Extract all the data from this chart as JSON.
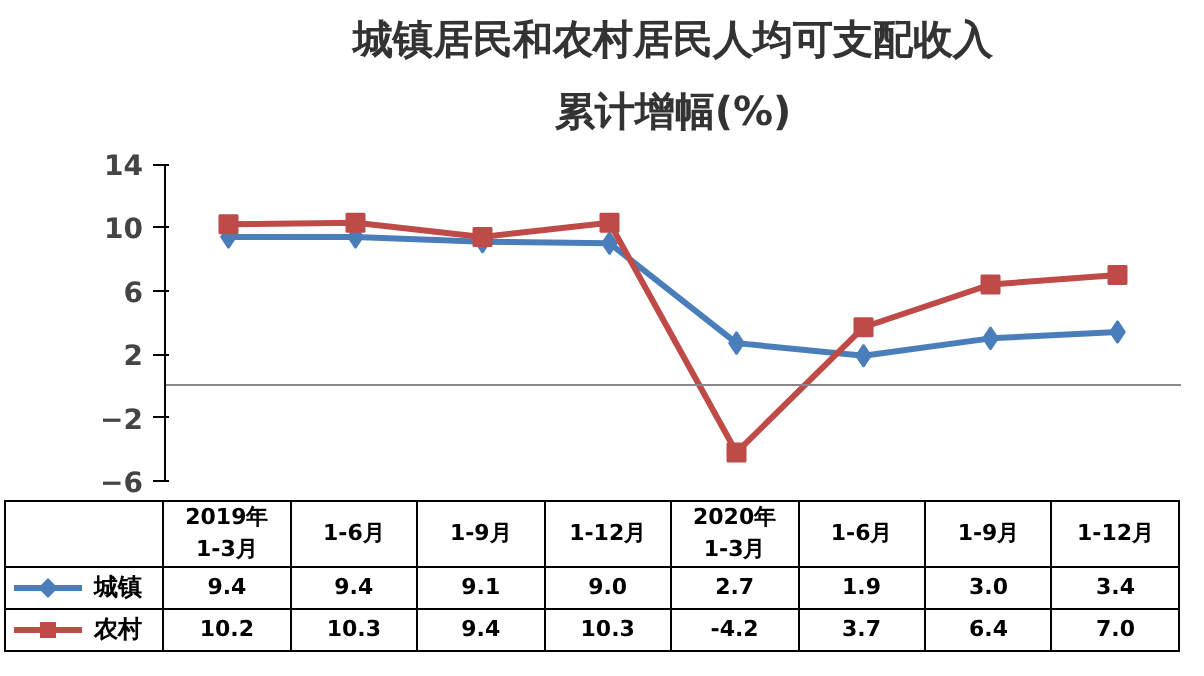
{
  "chart_data": {
    "type": "line",
    "title": "城镇居民和农村居民人均可支配收入",
    "subtitle": "累计增幅(%)",
    "categories": [
      "2019年\n1-3月",
      "1-6月",
      "1-9月",
      "1-12月",
      "2020年\n1-3月",
      "1-6月",
      "1-9月",
      "1-12月"
    ],
    "series": [
      {
        "name": "城镇",
        "color": "#4a7ebb",
        "marker": "diamond",
        "values": [
          9.4,
          9.4,
          9.1,
          9.0,
          2.7,
          1.9,
          3.0,
          3.4
        ],
        "value_labels": [
          "9.4",
          "9.4",
          "9.1",
          "9.0",
          "2.7",
          "1.9",
          "3.0",
          "3.4"
        ]
      },
      {
        "name": "农村",
        "color": "#be4b48",
        "marker": "square",
        "values": [
          10.2,
          10.3,
          9.4,
          10.3,
          -4.2,
          3.7,
          6.4,
          7.0
        ],
        "value_labels": [
          "10.2",
          "10.3",
          "9.4",
          "10.3",
          "-4.2",
          "3.7",
          "6.4",
          "7.0"
        ]
      }
    ],
    "ylim": [
      -6,
      14
    ],
    "yticks": [
      14,
      10,
      6,
      2,
      -2,
      -6
    ],
    "grid": false,
    "legend": "bottom left",
    "line_style": "solid"
  }
}
